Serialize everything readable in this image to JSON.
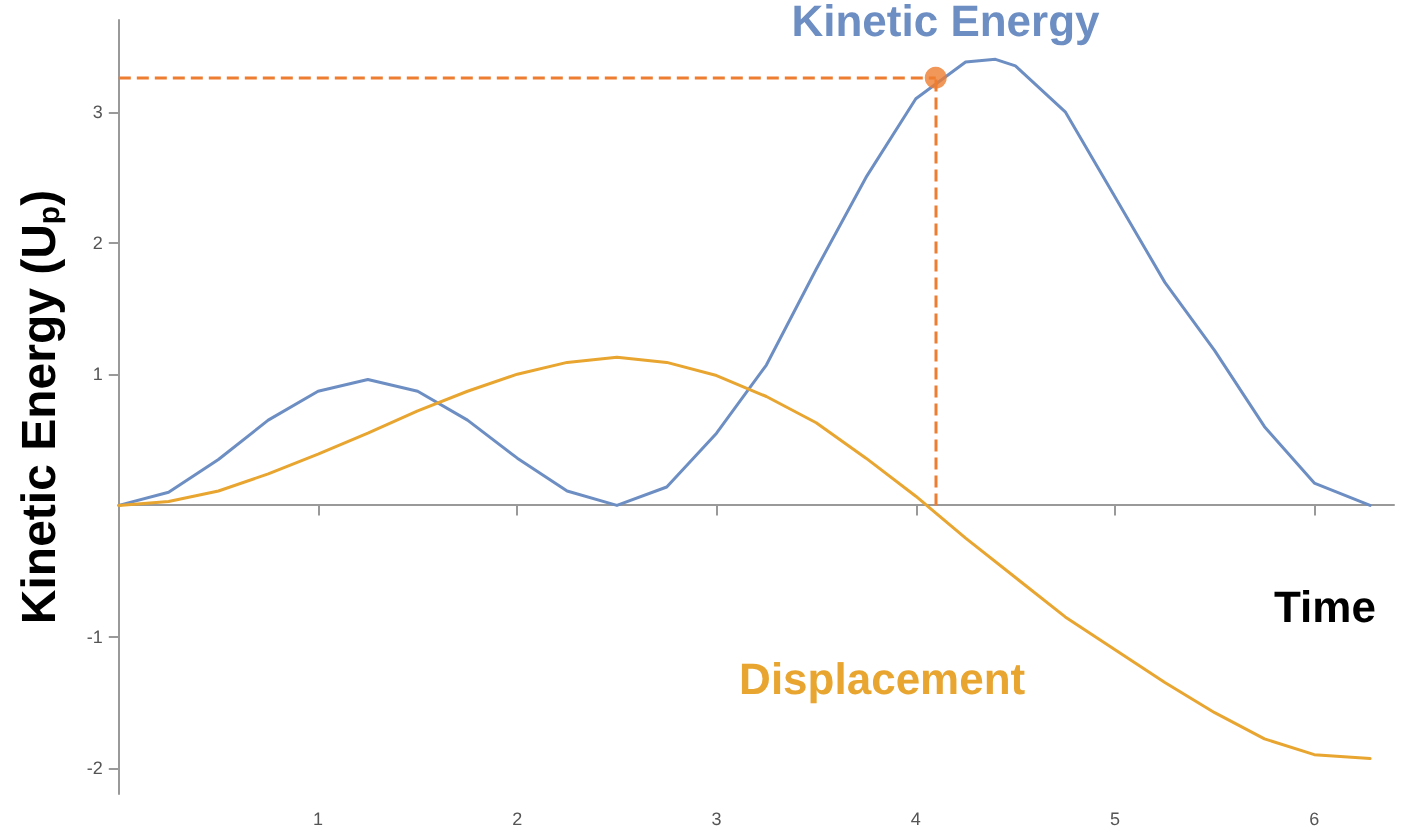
{
  "chart_data": {
    "type": "line",
    "xlabel": "Time",
    "ylabel": "Kinetic Energy (U$_{p}$)",
    "xlim": [
      0,
      6.4
    ],
    "xticks": [
      1,
      2,
      3,
      4,
      5,
      6
    ],
    "ylim": [
      -2.2,
      3.7
    ],
    "yticks": [
      -2,
      -1,
      1,
      2,
      3
    ],
    "grid": false,
    "legend": false,
    "marker": "none",
    "line_style": "solid",
    "series": [
      {
        "name": "Kinetic Energy",
        "color": "#6d8ec3",
        "x": [
          0,
          0.25,
          0.5,
          0.75,
          1.0,
          1.25,
          1.5,
          1.75,
          2.0,
          2.25,
          2.5,
          2.75,
          3.0,
          3.25,
          3.5,
          3.75,
          4.0,
          4.25,
          4.4,
          4.5,
          4.75,
          5.0,
          5.25,
          5.5,
          5.75,
          6.0,
          6.28
        ],
        "values": [
          0,
          0.1,
          0.35,
          0.65,
          0.87,
          0.96,
          0.87,
          0.65,
          0.36,
          0.11,
          0,
          0.14,
          0.55,
          1.07,
          1.8,
          2.5,
          3.1,
          3.38,
          3.4,
          3.35,
          3.0,
          2.35,
          1.7,
          1.18,
          0.6,
          0.17,
          0
        ]
      },
      {
        "name": "Displacement",
        "color": "#e8a530",
        "x": [
          0,
          0.25,
          0.5,
          0.75,
          1.0,
          1.25,
          1.5,
          1.75,
          2.0,
          2.25,
          2.5,
          2.75,
          3.0,
          3.25,
          3.5,
          3.75,
          4.0,
          4.25,
          4.5,
          4.75,
          5.0,
          5.25,
          5.5,
          5.75,
          6.0,
          6.28
        ],
        "values": [
          0,
          0.03,
          0.11,
          0.24,
          0.39,
          0.55,
          0.72,
          0.87,
          1.0,
          1.09,
          1.13,
          1.09,
          0.99,
          0.83,
          0.63,
          0.36,
          0.07,
          -0.25,
          -0.55,
          -0.85,
          -1.1,
          -1.35,
          -1.58,
          -1.78,
          -1.9,
          -1.93
        ]
      },
      {
        "type": "scatter",
        "color": "#ed7d31",
        "x": [
          4.1
        ],
        "values": [
          3.26
        ],
        "marker": "circle"
      }
    ],
    "ref_lines": [
      {
        "axis": "x",
        "value": 4.1,
        "color": "#ed7d31",
        "line_style": "dashed"
      },
      {
        "axis": "y",
        "value": 3.26,
        "color": "#ed7d31",
        "line_style": "dashed"
      }
    ]
  }
}
